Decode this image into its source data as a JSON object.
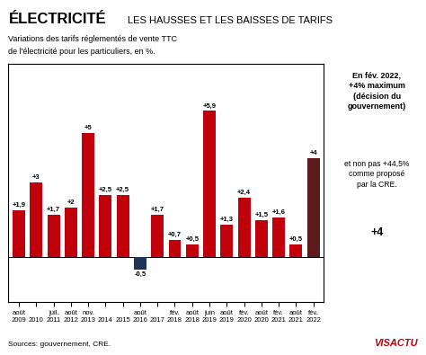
{
  "chart_data": {
    "type": "bar",
    "title": "ÉLECTRICITÉ",
    "subtitle": "LES HAUSSES ET LES BAISSES DE TARIFS",
    "annotations": [
      "Variations des tarifs réglementés de vente TTC",
      "de l'électricité pour les particuliers, en %.",
      "En fév. 2022,\n+4% maximum\n(décision du\ngouvernement)",
      "et non pas +44,5%\ncomme proposé\npar la CRE.",
      "+4",
      "Sources: gouvernement, CRE.",
      "VISACTU"
    ],
    "categories": [
      "août\n2009",
      "\n2010",
      "juil.\n2011",
      "août\n2012",
      "nov.\n2013",
      "\n2014",
      "\n2015",
      "août\n2016",
      "\n2017",
      "fév.\n2018",
      "août\n2018",
      "juin\n2019",
      "août\n2019",
      "fév.\n2020",
      "août\n2020",
      "fév.\n2021",
      "août\n2021",
      "fév.\n2022"
    ],
    "values": [
      1.9,
      3.0,
      1.7,
      2.0,
      5.0,
      2.5,
      2.5,
      -0.5,
      1.7,
      0.7,
      0.5,
      5.9,
      1.3,
      2.4,
      1.5,
      1.6,
      0.5,
      4.0
    ],
    "value_labels": [
      "+1,9",
      "+3",
      "+1,7",
      "+2",
      "+5",
      "+2,5",
      "+2,5",
      "-0,5",
      "+1,7",
      "+0,7",
      "+0,5",
      "+5,9",
      "+1,3",
      "+2,4",
      "+1,5",
      "+1,6",
      "+0,5",
      "+4"
    ],
    "colors": [
      "#c0000a",
      "#c0000a",
      "#c0000a",
      "#c0000a",
      "#c0000a",
      "#c0000a",
      "#c0000a",
      "#1d3557",
      "#c0000a",
      "#c0000a",
      "#c0000a",
      "#c0000a",
      "#c0000a",
      "#c0000a",
      "#c0000a",
      "#c0000a",
      "#c0000a",
      "#5c1a1a"
    ],
    "ylim": [
      -1.8,
      7.8
    ],
    "data_labels": true,
    "tick_labels": "x",
    "grid": false
  }
}
